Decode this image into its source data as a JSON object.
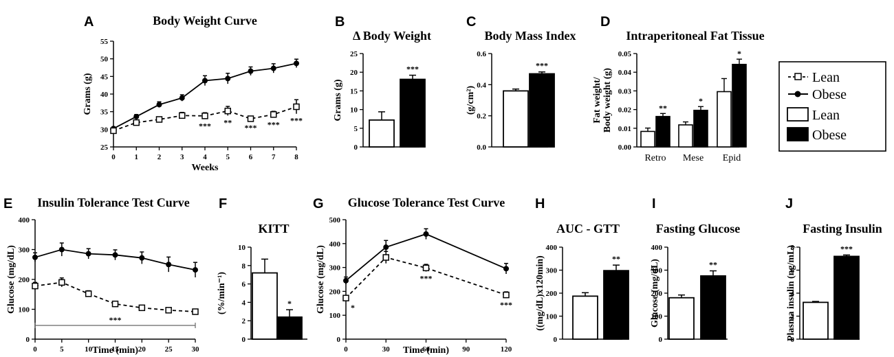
{
  "legend": {
    "items": [
      {
        "label": "Lean",
        "kind": "line-open"
      },
      {
        "label": "Obese",
        "kind": "line-filled"
      },
      {
        "label": "Lean",
        "kind": "bar-open"
      },
      {
        "label": "Obese",
        "kind": "bar-filled"
      }
    ]
  },
  "chart_data": [
    {
      "id": "A",
      "letter": "A",
      "type": "line",
      "title": "Body Weight Curve",
      "xlabel": "Weeks",
      "ylabel": "Grams (g)",
      "xlim": [
        0,
        8
      ],
      "ylim": [
        25,
        55
      ],
      "xticks": [
        0,
        1,
        2,
        3,
        4,
        5,
        6,
        7,
        8
      ],
      "yticks": [
        25,
        30,
        35,
        40,
        45,
        50,
        55
      ],
      "series": [
        {
          "name": "Obese",
          "x": [
            0,
            1,
            2,
            3,
            4,
            5,
            6,
            7,
            8
          ],
          "y": [
            30.2,
            33.6,
            37.0,
            38.9,
            43.8,
            44.4,
            46.5,
            47.3,
            48.7
          ],
          "err": [
            0.5,
            0.6,
            0.8,
            0.9,
            1.4,
            1.5,
            1.2,
            1.3,
            1.2
          ]
        },
        {
          "name": "Lean",
          "x": [
            0,
            1,
            2,
            3,
            4,
            5,
            6,
            7,
            8
          ],
          "y": [
            29.6,
            31.9,
            32.8,
            33.9,
            33.8,
            35.2,
            33.0,
            34.2,
            36.4
          ],
          "err": [
            0.5,
            0.6,
            0.7,
            0.9,
            0.9,
            1.3,
            0.6,
            0.9,
            2.0
          ]
        }
      ],
      "annotations": [
        {
          "x": 4,
          "text": "***"
        },
        {
          "x": 5,
          "text": "**"
        },
        {
          "x": 6,
          "text": "***"
        },
        {
          "x": 7,
          "text": "***"
        },
        {
          "x": 8,
          "text": "***"
        }
      ]
    },
    {
      "id": "B",
      "letter": "B",
      "type": "bar",
      "title": "Δ Body Weight",
      "ylabel": "Grams (g)",
      "ylim": [
        0,
        25
      ],
      "yticks": [
        0,
        5,
        10,
        15,
        20,
        25
      ],
      "categories": [
        "Lean",
        "Obese"
      ],
      "values": [
        7.2,
        18.1
      ],
      "err": [
        2.2,
        1.1
      ],
      "annotations": [
        {
          "index": 1,
          "text": "***"
        }
      ]
    },
    {
      "id": "C",
      "letter": "C",
      "type": "bar",
      "title": "Body Mass Index",
      "ylabel": "(g/cm²)",
      "ylim": [
        0,
        0.6
      ],
      "yticks": [
        0.0,
        0.2,
        0.4,
        0.6
      ],
      "categories": [
        "Lean",
        "Obese"
      ],
      "values": [
        0.36,
        0.47
      ],
      "err": [
        0.012,
        0.012
      ],
      "annotations": [
        {
          "index": 1,
          "text": "***"
        }
      ]
    },
    {
      "id": "D",
      "letter": "D",
      "type": "bar",
      "title": "Intraperitoneal Fat Tissue",
      "ylabel": "Fat weight/ Body weight (g)",
      "ylabel_lines": [
        "Fat weight/",
        "Body weight (g)"
      ],
      "ylim": [
        0,
        0.05
      ],
      "yticks": [
        0.0,
        0.01,
        0.02,
        0.03,
        0.04,
        0.05
      ],
      "categories": [
        "Retro",
        "Mese",
        "Epid"
      ],
      "series": [
        {
          "name": "Lean",
          "values": [
            0.0083,
            0.0118,
            0.0296
          ],
          "err": [
            0.0018,
            0.0016,
            0.007
          ]
        },
        {
          "name": "Obese",
          "values": [
            0.0163,
            0.0196,
            0.0442
          ],
          "err": [
            0.0016,
            0.002,
            0.0028
          ]
        }
      ],
      "annotations": [
        {
          "index": 0,
          "text": "**"
        },
        {
          "index": 1,
          "text": "*"
        },
        {
          "index": 2,
          "text": "*"
        }
      ]
    },
    {
      "id": "E",
      "letter": "E",
      "type": "line",
      "title": "Insulin Tolerance Test Curve",
      "xlabel": "Time (min)",
      "ylabel": "Glucose (mg/dL)",
      "xlim": [
        0,
        30
      ],
      "ylim": [
        0,
        400
      ],
      "xticks": [
        0,
        5,
        10,
        15,
        20,
        25,
        30
      ],
      "yticks": [
        0,
        100,
        200,
        300,
        400
      ],
      "series": [
        {
          "name": "Obese",
          "x": [
            0,
            5,
            10,
            15,
            20,
            25,
            30
          ],
          "y": [
            274,
            300,
            286,
            282,
            272,
            250,
            232
          ],
          "err": [
            15,
            22,
            17,
            17,
            20,
            25,
            25
          ]
        },
        {
          "name": "Lean",
          "x": [
            0,
            5,
            10,
            15,
            20,
            25,
            30
          ],
          "y": [
            178,
            190,
            152,
            118,
            105,
            97,
            92
          ],
          "err": [
            12,
            15,
            10,
            9,
            6,
            5,
            6
          ]
        }
      ],
      "annotations": [
        {
          "text": "***",
          "range": [
            0,
            30
          ]
        }
      ]
    },
    {
      "id": "F",
      "letter": "F",
      "type": "bar",
      "title": "KITT",
      "ylabel": "(%/min⁻¹)",
      "ylim": [
        0,
        10
      ],
      "yticks": [
        0,
        2,
        4,
        6,
        8,
        10
      ],
      "categories": [
        "Lean",
        "Obese"
      ],
      "values": [
        7.2,
        2.4
      ],
      "err": [
        1.5,
        0.8
      ],
      "annotations": [
        {
          "index": 1,
          "text": "*"
        }
      ]
    },
    {
      "id": "G",
      "letter": "G",
      "type": "line",
      "title": "Glucose Tolerance Test Curve",
      "xlabel": "Time (min)",
      "ylabel": "Glucose (mg/dL)",
      "xlim": [
        0,
        120
      ],
      "ylim": [
        0,
        500
      ],
      "xticks": [
        0,
        30,
        60,
        90,
        120
      ],
      "yticks": [
        0,
        100,
        200,
        300,
        400,
        500
      ],
      "series": [
        {
          "name": "Obese",
          "x": [
            0,
            30,
            60,
            120
          ],
          "y": [
            245,
            385,
            440,
            295
          ],
          "err": [
            15,
            28,
            22,
            22
          ]
        },
        {
          "name": "Lean",
          "x": [
            0,
            30,
            60,
            120
          ],
          "y": [
            172,
            342,
            298,
            185
          ],
          "err": [
            10,
            25,
            15,
            13
          ]
        }
      ],
      "annotations": [
        {
          "x": 0,
          "text": "*"
        },
        {
          "x": 60,
          "text": "***"
        },
        {
          "x": 120,
          "text": "***"
        }
      ]
    },
    {
      "id": "H",
      "letter": "H",
      "type": "bar",
      "title": "AUC - GTT",
      "ylabel": "((mg/dL)x120min)",
      "ylim": [
        0,
        400
      ],
      "yticks": [
        0,
        100,
        200,
        300,
        400
      ],
      "categories": [
        "Lean",
        "Obese"
      ],
      "values": [
        187,
        298
      ],
      "err": [
        15,
        24
      ],
      "annotations": [
        {
          "index": 1,
          "text": "**"
        }
      ]
    },
    {
      "id": "I",
      "letter": "I",
      "type": "bar",
      "title": "Fasting Glucose",
      "ylabel": "Glucose (mg/dL)",
      "ylim": [
        0,
        400
      ],
      "yticks": [
        0,
        100,
        200,
        300,
        400
      ],
      "categories": [
        "Lean",
        "Obese"
      ],
      "values": [
        180,
        275
      ],
      "err": [
        12,
        22
      ],
      "annotations": [
        {
          "index": 1,
          "text": "**"
        }
      ]
    },
    {
      "id": "J",
      "letter": "J",
      "type": "bar",
      "title": "Fasting Insulin",
      "ylabel": "Plasma insulin (ng/mL)",
      "ylim": [
        0,
        8
      ],
      "yticks": [
        0,
        2,
        4,
        6,
        8
      ],
      "categories": [
        "Lean",
        "Obese"
      ],
      "values": [
        3.2,
        7.2
      ],
      "err": [
        0.08,
        0.12
      ],
      "annotations": [
        {
          "index": 1,
          "text": "***"
        }
      ]
    }
  ]
}
